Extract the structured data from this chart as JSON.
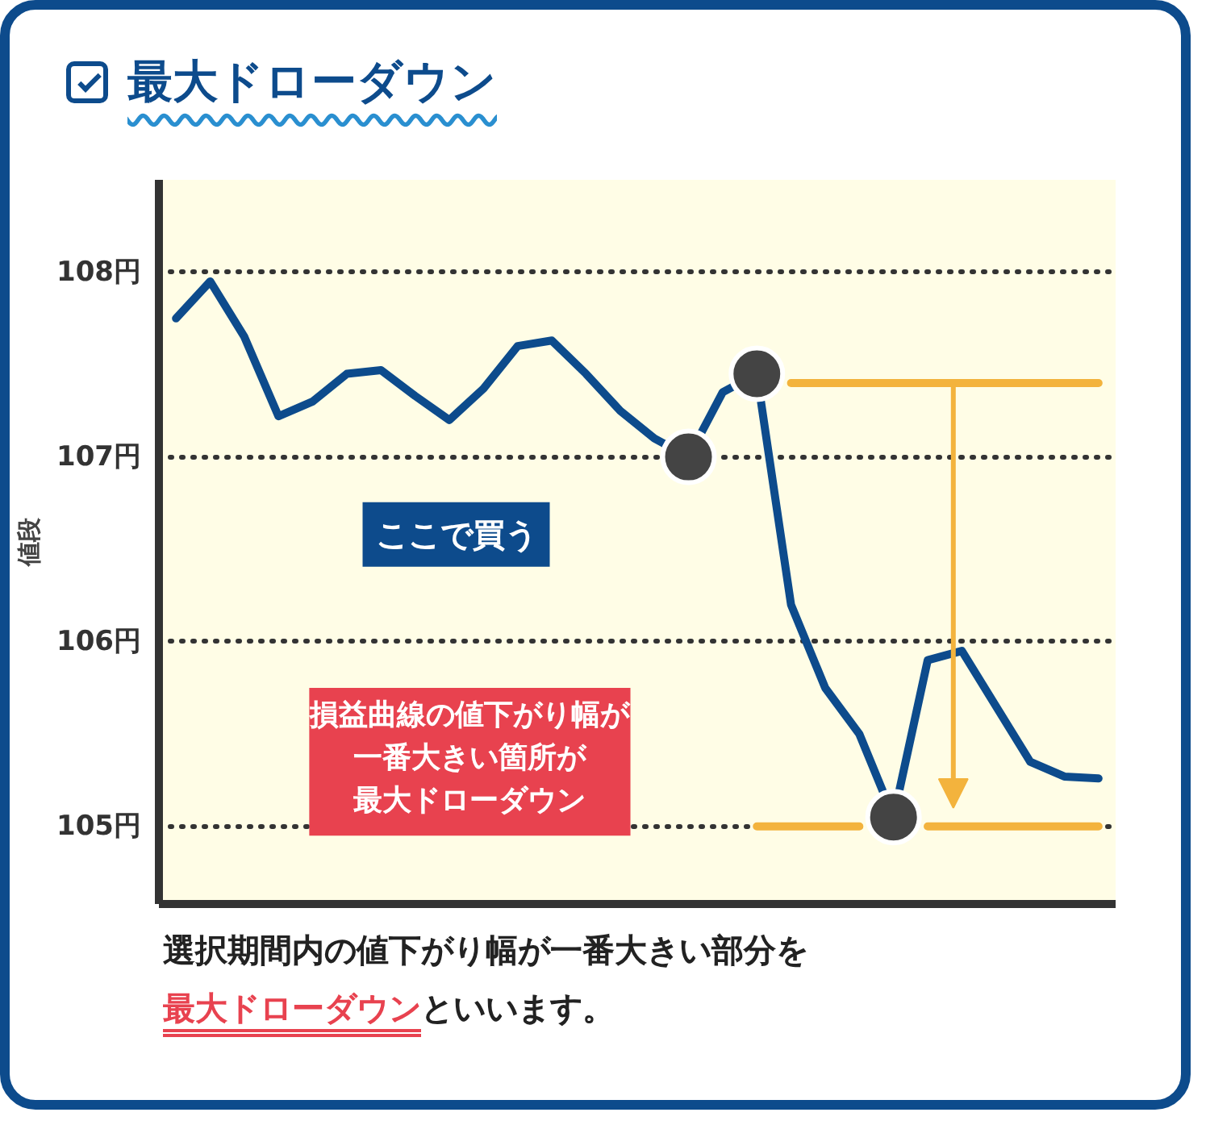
{
  "chart_data": {
    "type": "line",
    "title": "最大ドローダウン",
    "ylabel": "値段",
    "categories": [
      null,
      null,
      null,
      null,
      null,
      null,
      null,
      null,
      null,
      null,
      null,
      null,
      null,
      null,
      null,
      null,
      null,
      null,
      null,
      null,
      null,
      null,
      null,
      null,
      null,
      null,
      null,
      null
    ],
    "ylim": [
      104.58,
      108.5
    ],
    "yticks": [
      {
        "value": 105,
        "label": "105円"
      },
      {
        "value": 106,
        "label": "106円"
      },
      {
        "value": 107,
        "label": "107円"
      },
      {
        "value": 108,
        "label": "108円"
      }
    ],
    "grid": "y",
    "tick_labels": "y",
    "series": [
      {
        "color": "#0d4b8c",
        "values": [
          107.75,
          107.95,
          107.65,
          107.22,
          107.3,
          107.45,
          107.47,
          107.33,
          107.2,
          107.37,
          107.6,
          107.63,
          107.45,
          107.25,
          107.1,
          107.0,
          107.35,
          107.45,
          106.2,
          105.75,
          105.5,
          105.05,
          105.9,
          105.95,
          105.65,
          105.35,
          105.27,
          105.26
        ]
      },
      {
        "type": "scatter",
        "marker": "circle",
        "color": "#444444",
        "values": [
          null,
          null,
          null,
          null,
          null,
          null,
          null,
          null,
          null,
          null,
          null,
          null,
          null,
          null,
          null,
          107.0,
          null,
          107.45,
          null,
          null,
          null,
          105.05,
          null,
          null,
          null,
          null,
          null,
          null
        ]
      },
      {
        "color": "#f3b33d",
        "values": [
          null,
          null,
          null,
          null,
          null,
          null,
          null,
          null,
          null,
          null,
          null,
          null,
          null,
          null,
          null,
          null,
          null,
          null,
          107.4,
          107.4,
          107.4,
          107.4,
          107.4,
          107.4,
          107.4,
          107.4,
          107.4,
          107.4
        ]
      },
      {
        "color": "#f3b33d",
        "values": [
          null,
          null,
          null,
          null,
          null,
          null,
          null,
          null,
          null,
          null,
          null,
          null,
          null,
          null,
          null,
          null,
          null,
          105.0,
          105.0,
          105.0,
          105.0,
          null,
          105.0,
          105.0,
          105.0,
          105.0,
          105.0,
          105.0
        ]
      }
    ],
    "annotations": [
      "ここで買う",
      "損益曲線の値下がり幅が",
      "一番大きい箇所が",
      "最大ドローダウン",
      "選択期間内の値下がり幅が一番大きい部分を",
      "最大ドローダウン",
      "といいます。"
    ]
  }
}
